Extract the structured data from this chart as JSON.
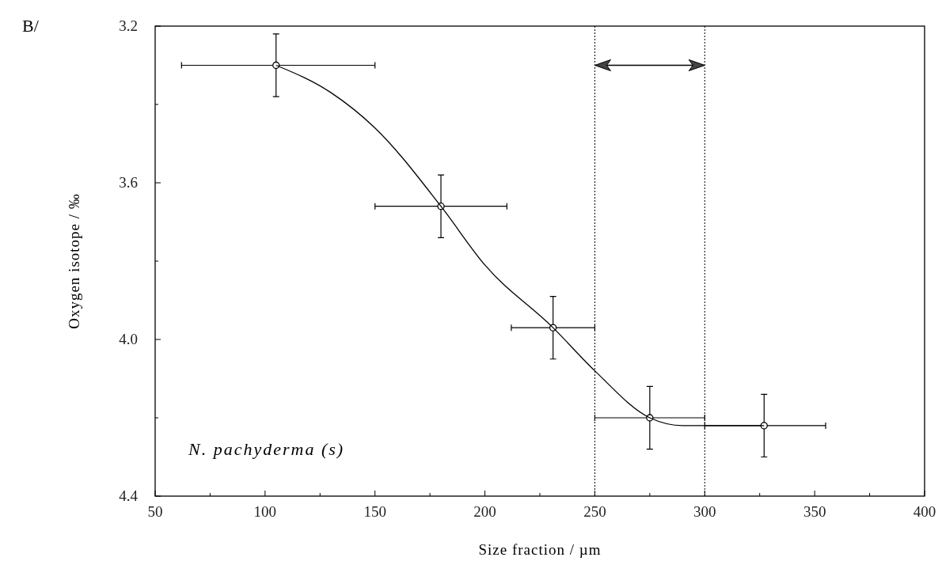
{
  "chart_data": {
    "type": "scatter",
    "xlabel": "Size fraction / µm",
    "ylabel": "Oxygen isotope / ‰",
    "annotations": [
      "B/",
      "N. pachyderma (s)"
    ],
    "xlim": [
      50,
      400
    ],
    "xticks": [
      50,
      {
        "value": 75,
        "label": null
      },
      100,
      {
        "value": 125,
        "label": null
      },
      150,
      {
        "value": 175,
        "label": null
      },
      200,
      {
        "value": 225,
        "label": null
      },
      250,
      {
        "value": 275,
        "label": null
      },
      300,
      {
        "value": 325,
        "label": null
      },
      350,
      {
        "value": 375,
        "label": null
      },
      400
    ],
    "ylim": [
      4.4,
      3.2
    ],
    "yticks": [
      3.2,
      {
        "value": 3.4,
        "label": null
      },
      3.6,
      {
        "value": 3.8,
        "label": null
      },
      {
        "value": 4.0,
        "label": "4.0"
      },
      {
        "value": 4.2,
        "label": null
      },
      4.4
    ],
    "ref_lines": [
      {
        "axis": "x",
        "value": 250,
        "color": "#000000",
        "line_style": "dotted"
      },
      {
        "axis": "x",
        "value": 300,
        "color": "#000000",
        "line_style": "dotted"
      }
    ],
    "grid": false,
    "series": [
      {
        "marker": "circle",
        "color": "#000000",
        "x": [
          105,
          180,
          231,
          275,
          327
        ],
        "values": [
          3.3,
          3.66,
          3.97,
          4.2,
          4.22
        ],
        "errors": [
          0.08,
          0.08,
          0.08,
          0.08,
          0.08
        ],
        "xerrors": [
          [
            62,
            150
          ],
          [
            150,
            210
          ],
          [
            212,
            250
          ],
          [
            250,
            300
          ],
          [
            300,
            355
          ]
        ]
      },
      {
        "type": "line",
        "marker": "none",
        "color": "#000000",
        "line_style": "solid",
        "x": [
          105,
          130,
          150,
          180,
          200,
          231,
          250,
          275,
          290,
          327
        ],
        "values": [
          3.3,
          3.37,
          3.46,
          3.66,
          3.81,
          3.97,
          4.08,
          4.2,
          4.22,
          4.22
        ]
      }
    ]
  }
}
